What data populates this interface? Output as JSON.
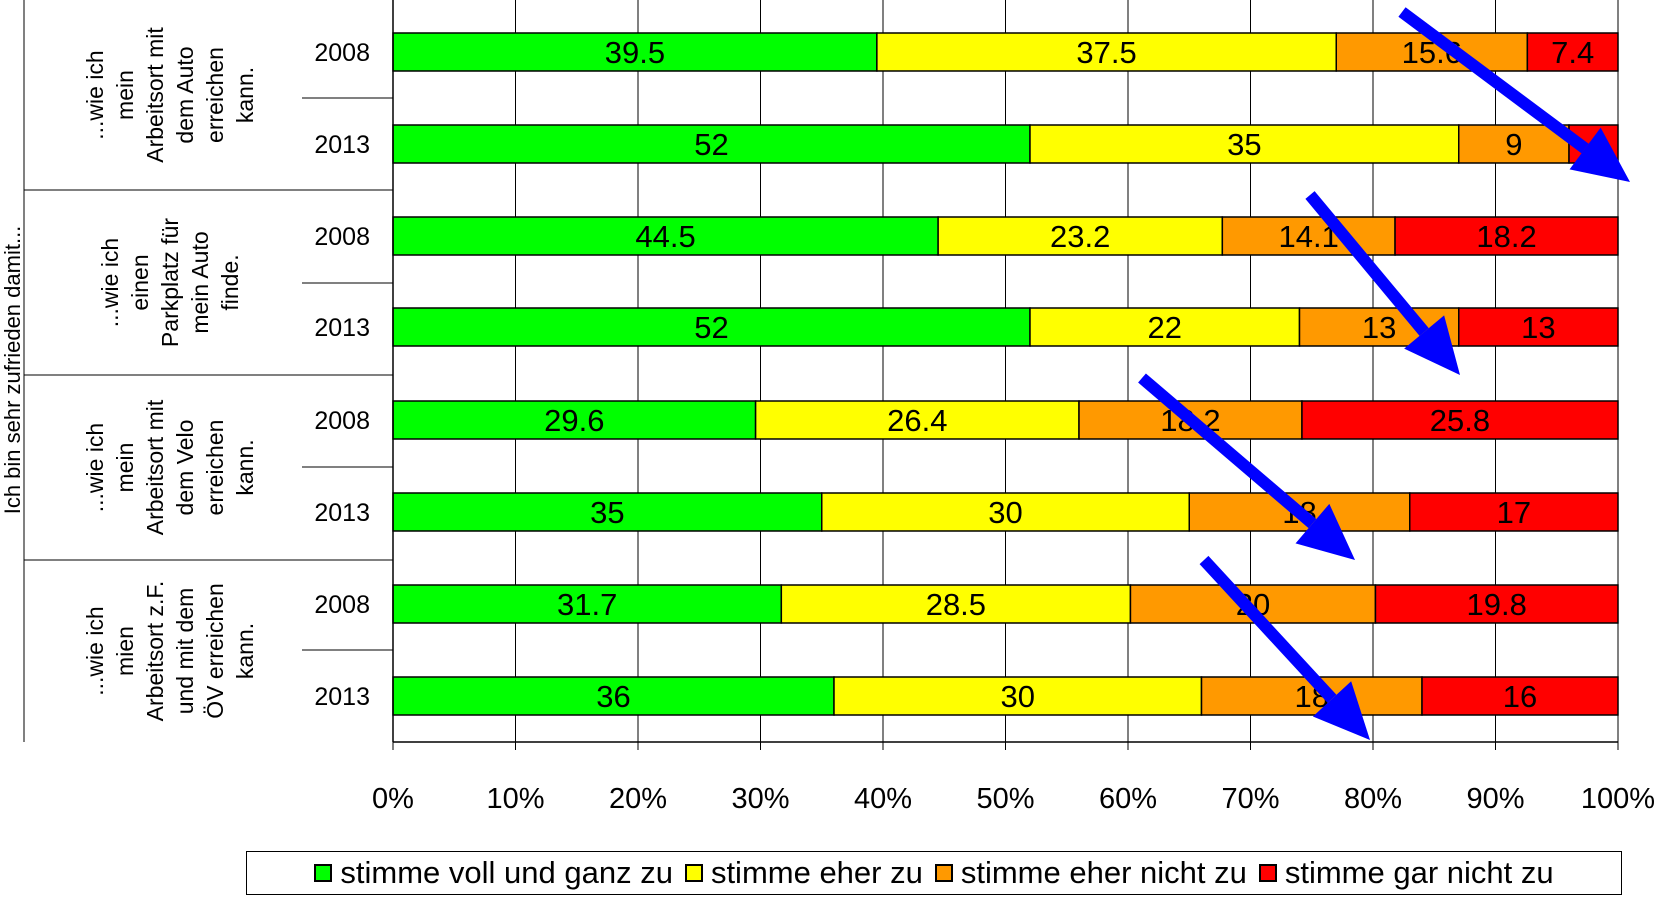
{
  "chart_data": {
    "type": "bar",
    "orientation": "horizontal",
    "stacked": "percent",
    "title": "",
    "ylabel": "Ich bin sehr zufrieden damit...",
    "xlabel": "",
    "xlim": [
      0,
      100
    ],
    "x_ticks": [
      "0%",
      "10%",
      "20%",
      "30%",
      "40%",
      "50%",
      "60%",
      "70%",
      "80%",
      "90%",
      "100%"
    ],
    "grid": "vertical",
    "legend_position": "bottom",
    "groups": [
      {
        "label": [
          "...wie ich",
          "mein",
          "Arbeitsort mit",
          "dem Auto",
          "erreichen",
          "kann."
        ]
      },
      {
        "label": [
          "...wie ich",
          "einen",
          "Parkplatz für",
          "mein Auto",
          "finde."
        ]
      },
      {
        "label": [
          "...wie ich",
          "mein",
          "Arbeitsort mit",
          "dem Velo",
          "erreichen",
          "kann."
        ]
      },
      {
        "label": [
          "...wie ich",
          "mien",
          "Arbeitsort z.F.",
          "und mit dem",
          "ÖV erreichen",
          "kann."
        ]
      }
    ],
    "categories": [
      "2008",
      "2013",
      "2008",
      "2013",
      "2008",
      "2013",
      "2008",
      "2013"
    ],
    "series": [
      {
        "name": "stimme voll und ganz zu",
        "color": "#00ff00",
        "values": [
          39.5,
          52,
          44.5,
          52,
          29.6,
          35,
          31.7,
          36
        ]
      },
      {
        "name": "stimme eher zu",
        "color": "#ffff00",
        "values": [
          37.5,
          35,
          23.2,
          22,
          26.4,
          30,
          28.5,
          30
        ]
      },
      {
        "name": "stimme eher nicht zu",
        "color": "#ff9900",
        "values": [
          15.6,
          9,
          14.1,
          13,
          18.2,
          18,
          20,
          18
        ]
      },
      {
        "name": "stimme gar nicht zu",
        "color": "#ff0000",
        "values": [
          7.4,
          4,
          18.2,
          13,
          25.8,
          17,
          19.8,
          16
        ]
      }
    ],
    "data_labels": [
      [
        "39.5",
        "37.5",
        "15.6",
        "7.4"
      ],
      [
        "52",
        "35",
        "9",
        ""
      ],
      [
        "44.5",
        "23.2",
        "14.1",
        "18.2"
      ],
      [
        "52",
        "22",
        "13",
        "13"
      ],
      [
        "29.6",
        "26.4",
        "18.2",
        "25.8"
      ],
      [
        "35",
        "30",
        "18",
        "17"
      ],
      [
        "31.7",
        "28.5",
        "20",
        "19.8"
      ],
      [
        "36",
        "30",
        "18",
        "16"
      ]
    ],
    "annotations": {
      "arrows": "blue arrows pointing down-right on each group, over the disagree segments",
      "arrow_color": "#0000ff"
    }
  }
}
